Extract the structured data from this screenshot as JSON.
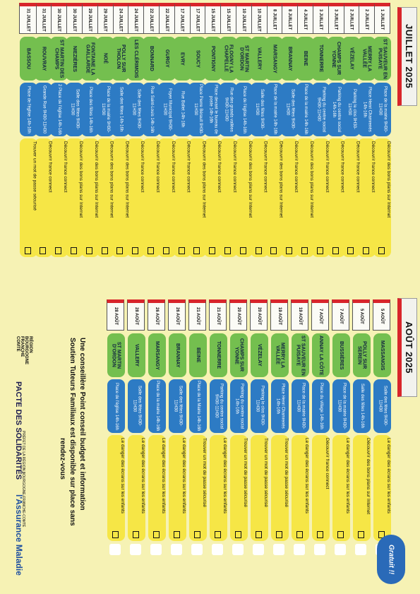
{
  "months": {
    "july": "JUILLET 2025",
    "august": "AOÛT 2025"
  },
  "july": [
    {
      "date": "1 JUILLET",
      "city": "ST SAUVEUR EN PUISAYE",
      "venue": "Place de la mairie 9H30-11H30",
      "topic": "Découvrir des bons plans sur Internet"
    },
    {
      "date": "2 JUILLET",
      "city": "MERRY LA VALLÉE",
      "venue": "Place Henri Chamrenès 14h-16h",
      "topic": "Découvrir france connect"
    },
    {
      "date": "2 JUILLET",
      "city": "VÉZELAY",
      "venue": "Parking le clos 9H30-11H30",
      "topic": "Découvrir france connect"
    },
    {
      "date": "3 JUILLET",
      "city": "CHAMPS SUR YONNE",
      "venue": "Parking du centre social 14h-16h",
      "topic": "Découvrir france connect"
    },
    {
      "date": "3 JUILLET",
      "city": "TONNERRE",
      "venue": "Parking du centre social 9H30-11H30",
      "topic": "Découvrir france connect"
    },
    {
      "date": "4 JUILLET",
      "city": "BEINE",
      "venue": "Place de la mairie 14h-16h",
      "topic": "Découvrir des bons plans sur Internet"
    },
    {
      "date": "8 JUILLET",
      "city": "BRANNAY",
      "venue": "Salle des fêtes 9H30-11H30",
      "topic": "Découvrir france connect"
    },
    {
      "date": "8 JUILLET",
      "city": "MARSANGY",
      "venue": "Place de la mairie 14h-16h",
      "topic": "Découvrir des bons plans sur Internet"
    },
    {
      "date": "10 JUILLET",
      "city": "VALLERY",
      "venue": "Salle des fêtes 9H30-11H30",
      "topic": "Découvrir france connect"
    },
    {
      "date": "10 JUILLET",
      "city": "ST MARTIN D'ORDON",
      "venue": "Place de l'église 14h-16h",
      "topic": "Découvrir des bons plans sur Internet"
    },
    {
      "date": "15 JUILLET",
      "city": "FLOGNY LA CHAPELLE",
      "venue": "Rue des grands vallées 9H30-11H30",
      "topic": "Découvrir france connect"
    },
    {
      "date": "15 JUILLET",
      "city": "PONTIGNY",
      "venue": "Place devant le bureau de poste 14h-16h",
      "topic": "Découvrir france connect"
    },
    {
      "date": "17 JUILLET",
      "city": "SOUCY",
      "venue": "Place Pierre Bérault 9H30-11H30",
      "topic": "Découvrir des bons plans sur Internet"
    },
    {
      "date": "17 JUILLET",
      "city": "EVRY",
      "venue": "Rue Ballet 14h-16h",
      "topic": "Découvrir france connect"
    },
    {
      "date": "22 JUILLET",
      "city": "GURGY",
      "venue": "Foyer Municipal 9H30-11H30",
      "topic": "Découvrir france connect"
    },
    {
      "date": "22 JUILLET",
      "city": "BONNARD",
      "venue": "Rue Saint-Louis 14h-16h",
      "topic": "Découvrir france connect"
    },
    {
      "date": "24 JUILLET",
      "city": "LES CLÉRIMOIS",
      "venue": "Salle des fêtes 9H30-11H30",
      "topic": "Découvrir france connect"
    },
    {
      "date": "24 JUILLET",
      "city": "POLLY SUR THOLON",
      "venue": "Salle des fêtes 14h-16h",
      "topic": "Découvrir des bons plans sur Internet"
    },
    {
      "date": "29 JUILLET",
      "city": "NOÉ",
      "venue": "Place de la mairie 9H30-11H30",
      "topic": "Découvrir des bons plans sur Internet"
    },
    {
      "date": "29 JUILLET",
      "city": "FONTAINE LA GAILLARDE",
      "venue": "Place des fêtes 14h-16h",
      "topic": "Découvrir des bons plans sur Internet"
    },
    {
      "date": "30 JUILLET",
      "city": "NIEZIÈRES",
      "venue": "Salle des fêtes 9H30-11H30",
      "topic": "Découvrir des bons plans sur Internet"
    },
    {
      "date": "30 JUILLET",
      "city": "ST MARTIN DES CHAMPS",
      "venue": "2 Place de l'église 14h-16h",
      "topic": "Découvrir france connect"
    },
    {
      "date": "31 JUILLET",
      "city": "ROUVRAY",
      "venue": "Grande Rue 9H30-11H30",
      "topic": "Découvrir france connect"
    },
    {
      "date": "31 JUILLET",
      "city": "BASSOU",
      "venue": "Place de l'église 14h-16h",
      "topic": "Trouver un mot de passe sécurisé"
    }
  ],
  "august": [
    {
      "date": "5 AOÛT",
      "city": "MASSANGIS",
      "venue": "Salle des fêtes 9H30-11H30",
      "topic": "Le danger des écrans sur les enfants"
    },
    {
      "date": "5 AOÛT",
      "city": "POLLY SUR SEREIN",
      "venue": "Salle des fêtes 14h-16h",
      "topic": "Découvrir des bons plans sur Internet"
    },
    {
      "date": "7 AOÛT",
      "city": "BUSSIÈRES",
      "venue": "Place de la mairie 9H30-11H30",
      "topic": "Le danger des écrans sur les enfants"
    },
    {
      "date": "7 AOÛT",
      "city": "ANNAY LA CÔTE",
      "venue": "Place du village 14h-16h",
      "topic": "Découvrir france connect"
    },
    {
      "date": "19 AOÛT",
      "city": "ST SAUVEUR EN PUISAYE",
      "venue": "Place de la mairie 9H30-11H30",
      "topic": "Le danger des écrans sur les enfants"
    },
    {
      "date": "19 AOÛT",
      "city": "MERRY LA VALLÉE",
      "venue": "Place Henri Chamrenès 14h-16h",
      "topic": "Trouver un mot de passe sécurisé"
    },
    {
      "date": "20 AOÛT",
      "city": "VÉZELAY",
      "venue": "Parking le clos 9H30-11H30",
      "topic": "Trouver un mot de passe sécurisé"
    },
    {
      "date": "20 AOÛT",
      "city": "CHAMPS SUR YONNE",
      "venue": "Parking du centre social 14h-16h",
      "topic": "Trouver un mot de passe sécurisé"
    },
    {
      "date": "21 AOÛT",
      "city": "TONNERRE",
      "venue": "Parking du centre social 9H30-11H30",
      "topic": "Le danger des écrans sur les enfants"
    },
    {
      "date": "21 AOÛT",
      "city": "BEINE",
      "venue": "Place de la Mairie 14h-16h",
      "topic": "Trouver un mot de passe sécurisé"
    },
    {
      "date": "26 AOÛT",
      "city": "BRANNAY",
      "venue": "Salle des fêtes 9H30-11H30",
      "topic": "Le danger des écrans sur les enfants"
    },
    {
      "date": "26 AOÛT",
      "city": "MARSANGY",
      "venue": "Place de la mairie 14h-16h",
      "topic": "Le danger des écrans sur les enfants"
    },
    {
      "date": "28 AOÛT",
      "city": "VALLERY",
      "venue": "Salle des fêtes 9H30-11H30",
      "topic": "Le danger des écrans sur les enfants"
    },
    {
      "date": "28 AOÛT",
      "city": "ST MARTIN D'ORDON",
      "venue": "Place de l'église 14h-16h",
      "topic": "Le danger des écrans sur les enfants"
    }
  ],
  "footer": {
    "line1": "Une conseillère Point conseil budget et information",
    "line2": "Soutien Tuteurs Familiaux est disponible sur place sans",
    "line3": "rendez-vous",
    "region": "RÉGION BOURGOGNE FRANCHE COMTÉ",
    "pacte": "PACTE DES SOLIDARITÉS",
    "prefet": "PRÉFET DE LA RÉGION BOURGOGNE-FRANCHE-COMTÉ",
    "assurance": "l'Assurance Maladie",
    "gratuit": "Gratuit !!"
  },
  "colors": {
    "red": "#d8252b",
    "green": "#74bf4f",
    "blue": "#2d7bc4",
    "yellow": "#f6e646"
  }
}
